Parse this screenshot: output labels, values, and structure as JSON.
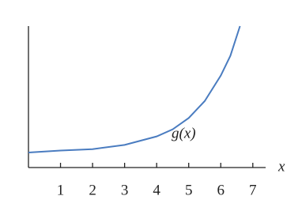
{
  "chart_data": {
    "type": "line",
    "x": [
      0,
      1,
      2,
      3,
      4,
      4.5,
      5,
      5.5,
      6,
      6.3,
      6.6
    ],
    "values": [
      1.06,
      1.2,
      1.3,
      1.6,
      2.2,
      2.7,
      3.5,
      4.7,
      6.5,
      7.9,
      10
    ],
    "color": "#4a7cc0",
    "xlim": [
      0,
      7.4
    ],
    "xticks": [
      1,
      2,
      3,
      4,
      5,
      6,
      7
    ],
    "ylim": [
      0,
      10
    ],
    "x_label": "x",
    "annotation": "g(x)"
  }
}
